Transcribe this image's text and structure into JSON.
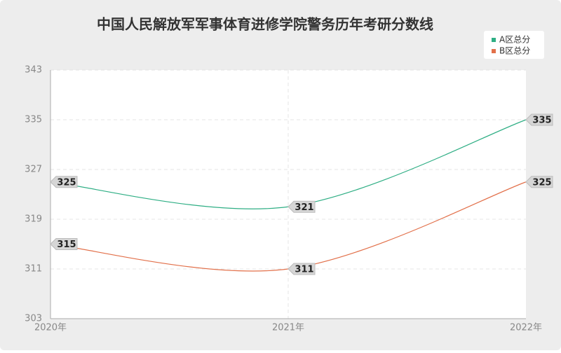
{
  "chart_data": {
    "type": "line",
    "title": "中国人民解放军军事体育进修学院警务历年考研分数线",
    "categories": [
      "2020年",
      "2021年",
      "2022年"
    ],
    "series": [
      {
        "name": "A区总分",
        "color": "#2eae84",
        "values": [
          325,
          321,
          335
        ]
      },
      {
        "name": "B区总分",
        "color": "#e2704a",
        "values": [
          315,
          311,
          325
        ]
      }
    ],
    "ylim": [
      303,
      343
    ],
    "yticks": [
      303,
      311,
      319,
      327,
      335,
      343
    ],
    "grid": true,
    "legend": "top-right"
  }
}
